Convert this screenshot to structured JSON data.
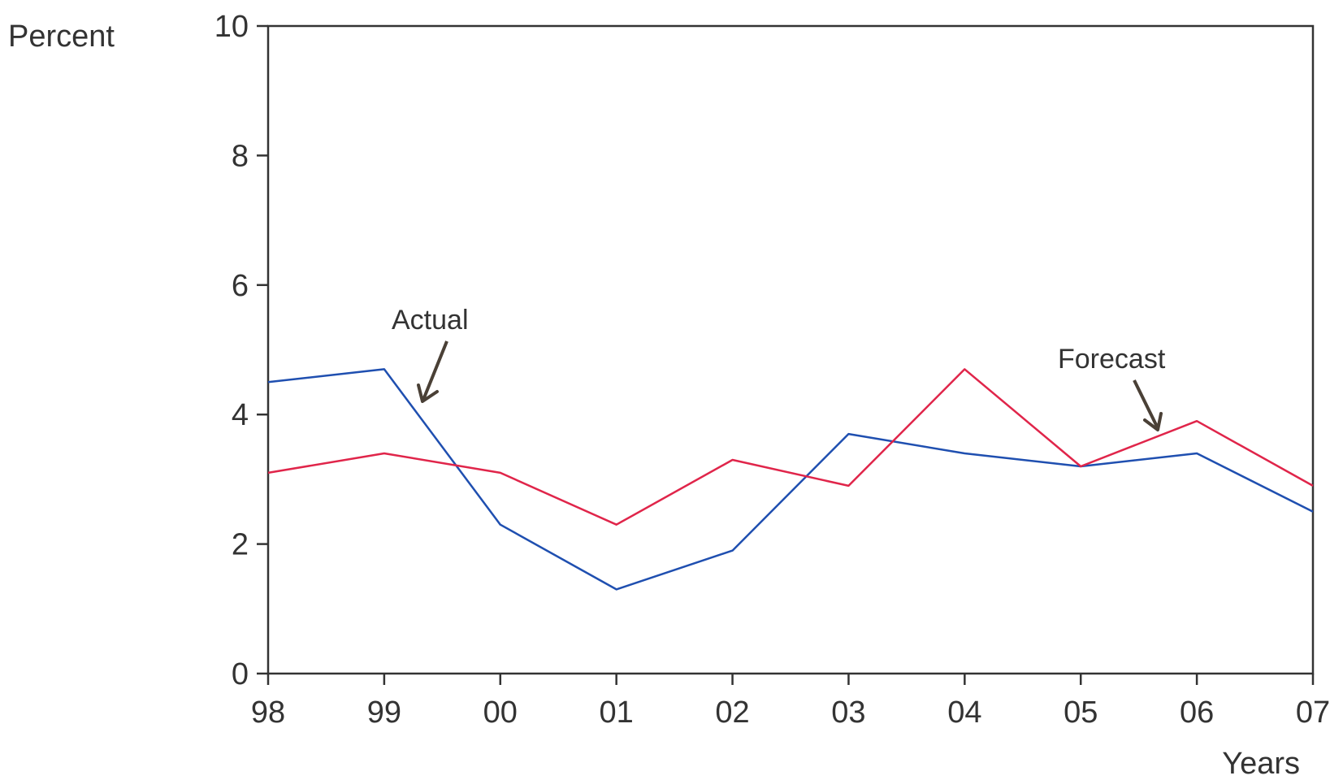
{
  "chart_data": {
    "type": "line",
    "categories": [
      "98",
      "99",
      "00",
      "01",
      "02",
      "03",
      "04",
      "05",
      "06",
      "07"
    ],
    "series": [
      {
        "name": "Actual",
        "color": "#1f4fb0",
        "values": [
          4.5,
          4.7,
          2.3,
          1.3,
          1.9,
          3.7,
          3.4,
          3.2,
          3.4,
          2.5
        ]
      },
      {
        "name": "Forecast",
        "color": "#e0254a",
        "values": [
          3.1,
          3.4,
          3.1,
          2.3,
          3.3,
          2.9,
          4.7,
          3.2,
          3.9,
          2.9
        ]
      }
    ],
    "xlabel": "Years",
    "ylabel": "Percent",
    "ylim": [
      0,
      10
    ],
    "yticks": [
      "0",
      "2",
      "4",
      "6",
      "8",
      "10"
    ],
    "grid": false,
    "legend": "none",
    "annotations": [
      {
        "text": "Actual",
        "series": "Actual"
      },
      {
        "text": "Forecast",
        "series": "Forecast"
      }
    ],
    "axis_color": "#333333",
    "arrow_color": "#4a4036"
  }
}
